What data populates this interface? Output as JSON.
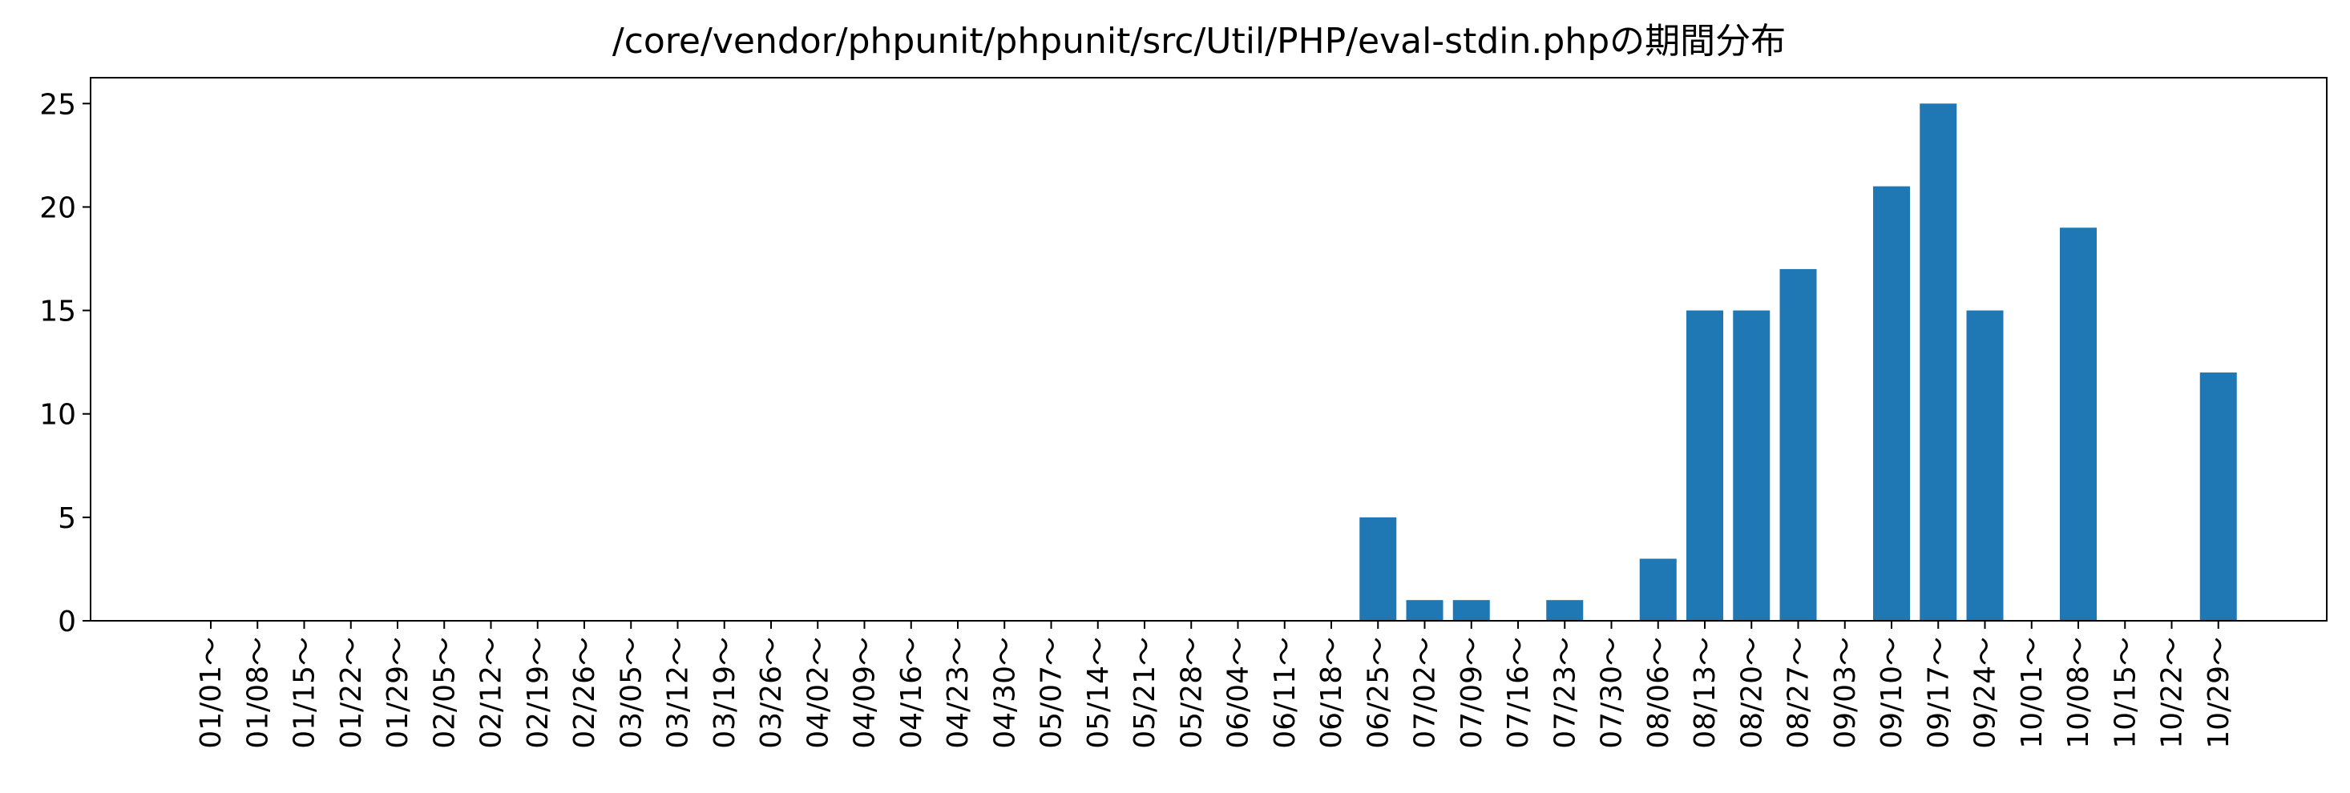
{
  "chart_data": {
    "type": "bar",
    "title": "/core/vendor/phpunit/phpunit/src/Util/PHP/eval-stdin.phpの期間分布",
    "xlabel": "",
    "ylabel": "",
    "ylim": [
      0,
      26.25
    ],
    "yticks": [
      0,
      5,
      10,
      15,
      20,
      25
    ],
    "bar_color": "#1f77b4",
    "grid": false,
    "categories": [
      "01/01～",
      "01/08～",
      "01/15～",
      "01/22～",
      "01/29～",
      "02/05～",
      "02/12～",
      "02/19～",
      "02/26～",
      "03/05～",
      "03/12～",
      "03/19～",
      "03/26～",
      "04/02～",
      "04/09～",
      "04/16～",
      "04/23～",
      "04/30～",
      "05/07～",
      "05/14～",
      "05/21～",
      "05/28～",
      "06/04～",
      "06/11～",
      "06/18～",
      "06/25～",
      "07/02～",
      "07/09～",
      "07/16～",
      "07/23～",
      "07/30～",
      "08/06～",
      "08/13～",
      "08/20～",
      "08/27～",
      "09/03～",
      "09/10～",
      "09/17～",
      "09/24～",
      "10/01～",
      "10/08～",
      "10/15～",
      "10/22～",
      "10/29～"
    ],
    "values": [
      0,
      0,
      0,
      0,
      0,
      0,
      0,
      0,
      0,
      0,
      0,
      0,
      0,
      0,
      0,
      0,
      0,
      0,
      0,
      0,
      0,
      0,
      0,
      0,
      0,
      5,
      1,
      1,
      0,
      1,
      0,
      3,
      15,
      15,
      17,
      0,
      21,
      25,
      15,
      0,
      19,
      0,
      0,
      12
    ]
  }
}
